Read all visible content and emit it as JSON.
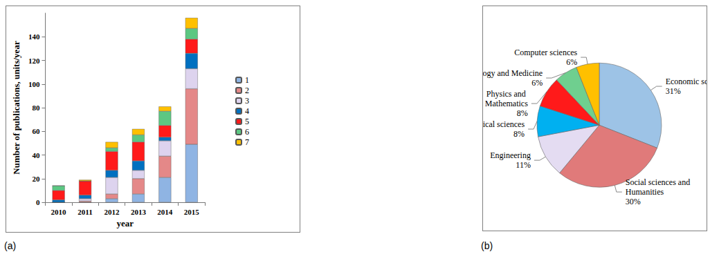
{
  "chart_data": [
    {
      "type": "bar",
      "title": "(a)",
      "stacked": true,
      "grid": false,
      "legend": "right",
      "x_label": "year",
      "y_label": "Number of publications, units/year",
      "categories": [
        "2010",
        "2011",
        "2012",
        "2013",
        "2014",
        "2015"
      ],
      "ylim": [
        0,
        160
      ],
      "yticks": [
        0,
        20,
        40,
        60,
        80,
        100,
        120,
        140
      ],
      "series": [
        {
          "name": "1",
          "color": "#8fb4e3",
          "values": [
            0,
            0,
            3,
            7,
            21,
            49
          ]
        },
        {
          "name": "2",
          "color": "#e48888",
          "values": [
            0,
            1,
            4,
            13,
            18,
            47
          ]
        },
        {
          "name": "3",
          "color": "#ddd3ee",
          "values": [
            0,
            2,
            14,
            7,
            13,
            17
          ]
        },
        {
          "name": "4",
          "color": "#0070c0",
          "values": [
            2,
            3,
            6,
            8,
            3,
            13
          ]
        },
        {
          "name": "5",
          "color": "#ff1a1a",
          "values": [
            8,
            12,
            16,
            16,
            10,
            12
          ]
        },
        {
          "name": "6",
          "color": "#5cc782",
          "values": [
            4,
            0,
            3,
            6,
            12,
            9
          ]
        },
        {
          "name": "7",
          "color": "#ffc000",
          "values": [
            0,
            1,
            5,
            5,
            4,
            9
          ]
        }
      ]
    },
    {
      "type": "pie",
      "title": "(b)",
      "data_labels": true,
      "categories": [
        "Economic sciences",
        "Social sciences and Humanities",
        "Engineering",
        "Chemical sciences",
        "Physics and Mathematics",
        "Biology and Medicine",
        "Computer sciences"
      ],
      "values": [
        31,
        30,
        11,
        8,
        8,
        6,
        6
      ],
      "value_labels": [
        "31%",
        "30%",
        "11%",
        "8%",
        "8%",
        "6%",
        "6%"
      ],
      "colors": [
        "#9dc3e6",
        "#e07a7a",
        "#e4dcf2",
        "#00b0f0",
        "#ff1a1a",
        "#6fcf8f",
        "#ffc000"
      ]
    }
  ]
}
